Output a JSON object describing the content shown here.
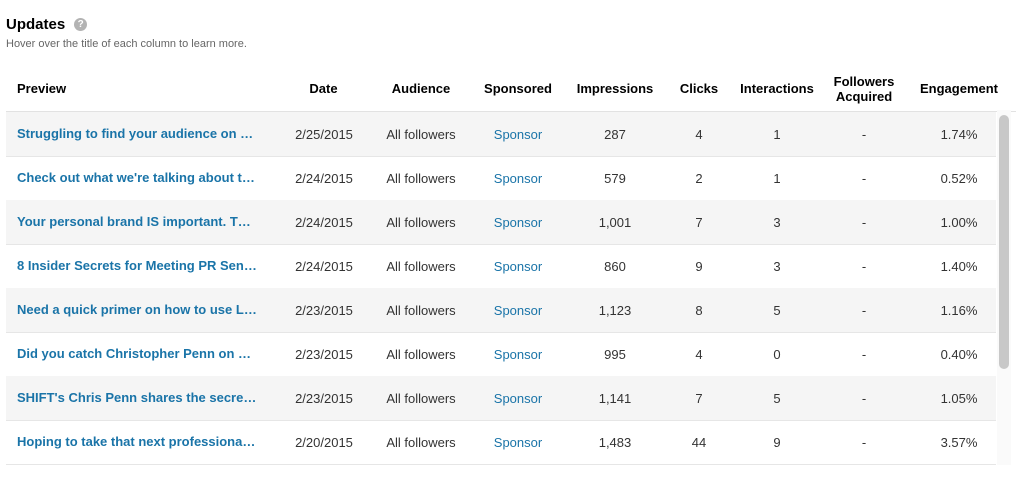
{
  "header": {
    "title": "Updates",
    "help_icon": "?",
    "subtitle": "Hover over the title of each column to learn more."
  },
  "columns": {
    "preview": "Preview",
    "date": "Date",
    "audience": "Audience",
    "sponsored": "Sponsored",
    "impressions": "Impressions",
    "clicks": "Clicks",
    "interactions": "Interactions",
    "followers_line1": "Followers",
    "followers_line2": "Acquired",
    "engagement": "Engagement"
  },
  "rows": [
    {
      "preview": "Struggling to find your audience on …",
      "date": "2/25/2015",
      "audience": "All followers",
      "sponsor": "Sponsor",
      "impressions": "287",
      "clicks": "4",
      "interactions": "1",
      "followers": "-",
      "engagement": "1.74%"
    },
    {
      "preview": "Check out what we're talking about t…",
      "date": "2/24/2015",
      "audience": "All followers",
      "sponsor": "Sponsor",
      "impressions": "579",
      "clicks": "2",
      "interactions": "1",
      "followers": "-",
      "engagement": "0.52%"
    },
    {
      "preview": "Your personal brand IS important. T…",
      "date": "2/24/2015",
      "audience": "All followers",
      "sponsor": "Sponsor",
      "impressions": "1,001",
      "clicks": "7",
      "interactions": "3",
      "followers": "-",
      "engagement": "1.00%"
    },
    {
      "preview": "8 Insider Secrets for Meeting PR Sen…",
      "date": "2/24/2015",
      "audience": "All followers",
      "sponsor": "Sponsor",
      "impressions": "860",
      "clicks": "9",
      "interactions": "3",
      "followers": "-",
      "engagement": "1.40%"
    },
    {
      "preview": "Need a quick primer on how to use L…",
      "date": "2/23/2015",
      "audience": "All followers",
      "sponsor": "Sponsor",
      "impressions": "1,123",
      "clicks": "8",
      "interactions": "5",
      "followers": "-",
      "engagement": "1.16%"
    },
    {
      "preview": "Did you catch Christopher Penn on …",
      "date": "2/23/2015",
      "audience": "All followers",
      "sponsor": "Sponsor",
      "impressions": "995",
      "clicks": "4",
      "interactions": "0",
      "followers": "-",
      "engagement": "0.40%"
    },
    {
      "preview": "SHIFT's Chris Penn shares the secre…",
      "date": "2/23/2015",
      "audience": "All followers",
      "sponsor": "Sponsor",
      "impressions": "1,141",
      "clicks": "7",
      "interactions": "5",
      "followers": "-",
      "engagement": "1.05%"
    },
    {
      "preview": "Hoping to take that next professiona…",
      "date": "2/20/2015",
      "audience": "All followers",
      "sponsor": "Sponsor",
      "impressions": "1,483",
      "clicks": "44",
      "interactions": "9",
      "followers": "-",
      "engagement": "3.57%"
    }
  ],
  "colors": {
    "link": "#1a74a8",
    "row_shade": "#f5f5f5",
    "scrollbar": "#c8c8c8"
  }
}
